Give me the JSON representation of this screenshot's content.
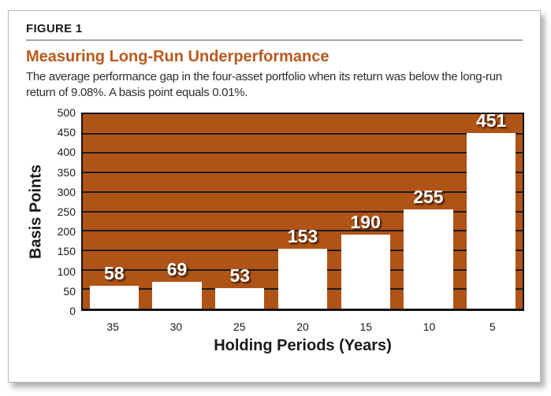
{
  "figure": {
    "label": "FIGURE 1",
    "title": "Measuring Long-Run Underperformance",
    "description": "The average performance gap in the four-asset portfolio when its return was below the long-run return of 9.08%. A basis point equals 0.01%."
  },
  "colors": {
    "title_text": "#b95a1e",
    "plot_background": "#b05317",
    "gridline": "#1c1c1c",
    "bar_fill": "#ffffff",
    "bar_label_text": "#ffffff",
    "axis_text": "#1a1a1a"
  },
  "chart_data": {
    "type": "bar",
    "categories": [
      "35",
      "30",
      "25",
      "20",
      "15",
      "10",
      "5"
    ],
    "values": [
      58,
      69,
      53,
      153,
      190,
      255,
      451
    ],
    "title": "",
    "xlabel": "Holding Periods (Years)",
    "ylabel": "Basis Points",
    "ylim": [
      0,
      500
    ],
    "ytick_step": 50,
    "grid": true,
    "legend": false,
    "value_labels": true
  }
}
